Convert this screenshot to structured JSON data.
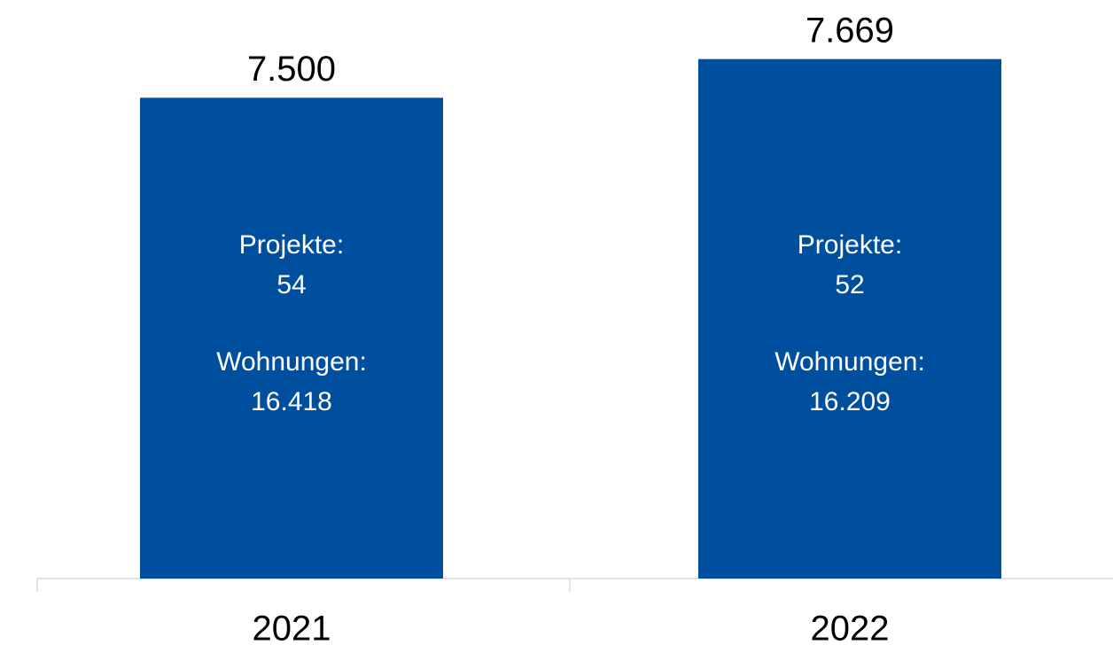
{
  "chart_data": {
    "type": "bar",
    "categories": [
      "2021",
      "2022"
    ],
    "values": [
      7500,
      7669
    ],
    "value_labels": [
      "7.500",
      "7.669"
    ],
    "color": "#004f9f",
    "ylim": [
      5400,
      7900
    ],
    "annotations": [
      [
        "Projekte:",
        54,
        "Wohnungen:",
        {
          "value": 16418,
          "label": "16.418"
        }
      ],
      [
        "Projekte:",
        52,
        "Wohnungen:",
        {
          "value": 16209,
          "label": "16.209"
        }
      ]
    ]
  }
}
